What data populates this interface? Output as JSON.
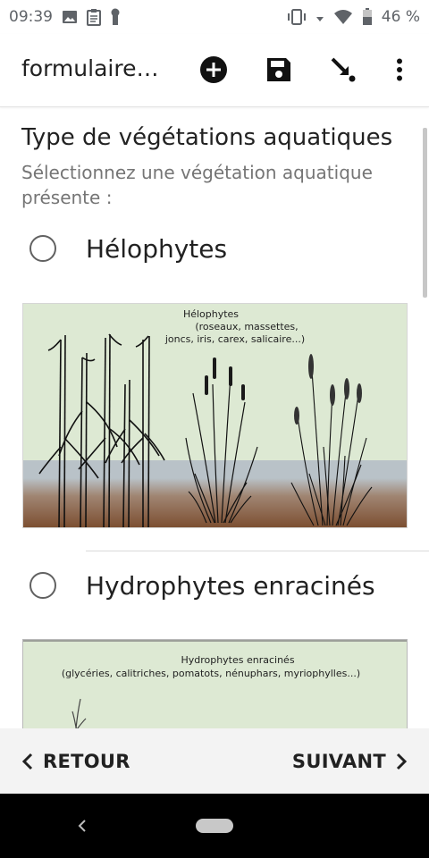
{
  "status_bar": {
    "time": "09:39",
    "battery_percent": "46 %",
    "left_icons": [
      "image-icon",
      "clipboard-icon",
      "keyhole-icon"
    ],
    "right_icons": [
      "vibrate-icon",
      "data-arrows-icon",
      "wifi-icon",
      "battery-icon"
    ]
  },
  "app_bar": {
    "title": "formulaire…",
    "actions": [
      "add-circle-icon",
      "save-icon",
      "go-to-icon",
      "more-vert-icon"
    ]
  },
  "question": {
    "title": "Type de végétations aquatiques",
    "hint": "Sélectionnez une végétation aquatique présente :"
  },
  "options": [
    {
      "label": "Hélophytes",
      "selected": false,
      "image_caption": [
        "Hélophytes",
        "(roseaux, massettes,",
        "joncs, iris, carex, salicaire...)"
      ]
    },
    {
      "label": "Hydrophytes enracinés",
      "selected": false,
      "image_caption": [
        "Hydrophytes enracinés",
        "(glycéries, calitriches, pomatots, nénuphars, myriophylles...)"
      ]
    }
  ],
  "navigation": {
    "back_label": "RETOUR",
    "next_label": "SUIVANT"
  },
  "colors": {
    "image_sky": "#dde9d3",
    "image_water": "#b9c2c8",
    "image_mud": "#8a5a3a",
    "bottom_bar": "#f3f3f3"
  }
}
